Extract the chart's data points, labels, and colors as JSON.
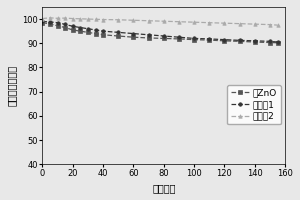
{
  "title": "",
  "xlabel": "循环次数",
  "ylabel": "放电容量百分比",
  "xlim": [
    0,
    160
  ],
  "ylim": [
    40,
    105
  ],
  "yticks": [
    40,
    50,
    60,
    70,
    80,
    90,
    100
  ],
  "xticks": [
    0,
    20,
    40,
    60,
    80,
    100,
    120,
    140,
    160
  ],
  "series": [
    {
      "label": "无ZnO",
      "color": "#555555",
      "linestyle": "--",
      "marker": "s",
      "markersize": 2.5,
      "linewidth": 0.9,
      "x": [
        0,
        5,
        10,
        15,
        20,
        25,
        30,
        35,
        40,
        50,
        60,
        70,
        80,
        90,
        100,
        110,
        120,
        130,
        140,
        150,
        155
      ],
      "y": [
        98.5,
        98.0,
        97.2,
        96.5,
        95.5,
        95.0,
        94.5,
        94.0,
        93.5,
        93.0,
        92.5,
        92.2,
        92.0,
        91.8,
        91.5,
        91.3,
        91.0,
        90.8,
        90.5,
        90.3,
        90.2
      ]
    },
    {
      "label": "实施例1",
      "color": "#333333",
      "linestyle": "--",
      "marker": "o",
      "markersize": 2.5,
      "linewidth": 0.9,
      "x": [
        0,
        5,
        10,
        15,
        20,
        25,
        30,
        35,
        40,
        50,
        60,
        70,
        80,
        90,
        100,
        110,
        120,
        130,
        140,
        150,
        155
      ],
      "y": [
        99.0,
        98.8,
        98.5,
        97.8,
        97.0,
        96.5,
        96.0,
        95.5,
        95.0,
        94.5,
        94.0,
        93.5,
        93.0,
        92.5,
        92.0,
        91.8,
        91.5,
        91.2,
        91.0,
        90.8,
        90.5
      ]
    },
    {
      "label": "实施例2",
      "color": "#aaaaaa",
      "linestyle": "--",
      "marker": "^",
      "markersize": 2.5,
      "linewidth": 0.9,
      "x": [
        0,
        5,
        10,
        15,
        20,
        25,
        30,
        35,
        40,
        50,
        60,
        70,
        80,
        90,
        100,
        110,
        120,
        130,
        140,
        150,
        155
      ],
      "y": [
        100.2,
        100.5,
        100.3,
        100.4,
        100.2,
        100.1,
        100.0,
        99.9,
        99.8,
        99.7,
        99.5,
        99.3,
        99.1,
        98.9,
        98.7,
        98.5,
        98.3,
        98.1,
        97.9,
        97.7,
        97.5
      ]
    }
  ],
  "legend_fontsize": 6.5,
  "axis_label_fontsize": 7,
  "tick_fontsize": 6,
  "bg_color": "#e8e8e8",
  "plot_bg_color": "#e8e8e8"
}
